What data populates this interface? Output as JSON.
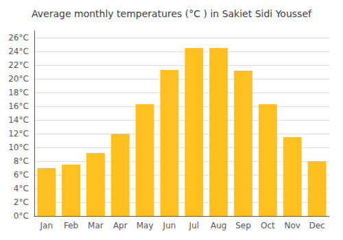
{
  "chart_data": {
    "type": "bar",
    "title": "Average monthly temperatures (°C ) in Sakiet Sidi Youssef",
    "categories": [
      "Jan",
      "Feb",
      "Mar",
      "Apr",
      "May",
      "Jun",
      "Jul",
      "Aug",
      "Sep",
      "Oct",
      "Nov",
      "Dec"
    ],
    "values": [
      7,
      7.5,
      9.2,
      12,
      16.3,
      21.3,
      24.5,
      24.5,
      21.2,
      16.3,
      11.5,
      8
    ],
    "color": "#FFC020",
    "ylim": [
      0,
      27
    ],
    "yticks": [
      {
        "value": 0,
        "label": "0°C"
      },
      {
        "value": 2,
        "label": "2°C"
      },
      {
        "value": 4,
        "label": "4°C"
      },
      {
        "value": 6,
        "label": "6°C"
      },
      {
        "value": 8,
        "label": "8°C"
      },
      {
        "value": 10,
        "label": "10°C"
      },
      {
        "value": 12,
        "label": "12°C"
      },
      {
        "value": 14,
        "label": "14°C"
      },
      {
        "value": 16,
        "label": "16°C"
      },
      {
        "value": 18,
        "label": "18°C"
      },
      {
        "value": 20,
        "label": "20°C"
      },
      {
        "value": 22,
        "label": "22°C"
      },
      {
        "value": 24,
        "label": "24°C"
      },
      {
        "value": 26,
        "label": "26°C"
      }
    ],
    "grid": true
  }
}
